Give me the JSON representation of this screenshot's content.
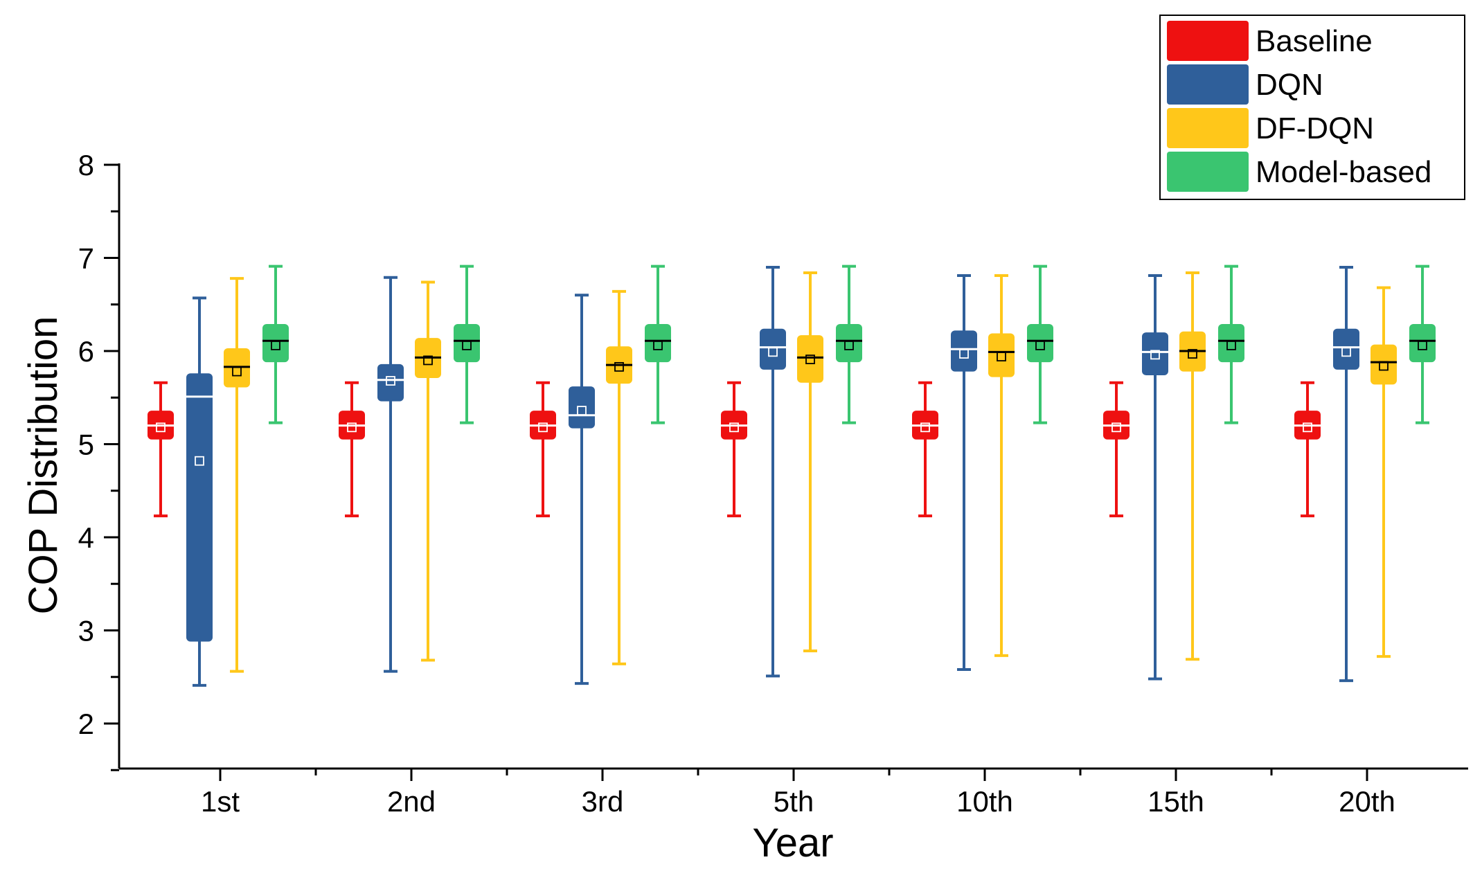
{
  "chart_data": {
    "type": "box",
    "title": "",
    "xlabel": "Year",
    "ylabel": "COP Distribution",
    "ylim": [
      1.5,
      8
    ],
    "yticks": [
      2,
      3,
      4,
      5,
      6,
      7,
      8
    ],
    "ytick_labels": [
      "2",
      "3",
      "4",
      "5",
      "6",
      "7",
      "8"
    ],
    "categories": [
      "1st",
      "2nd",
      "3rd",
      "5th",
      "10th",
      "15th",
      "20th"
    ],
    "legend_position": "top-right",
    "series": [
      {
        "name": "Baseline",
        "color": "#ee1111",
        "median_color": "#ffffff",
        "boxes": [
          {
            "min": 4.23,
            "q1": 5.05,
            "median": 5.2,
            "q3": 5.36,
            "max": 5.66,
            "mean": 5.18
          },
          {
            "min": 4.23,
            "q1": 5.05,
            "median": 5.2,
            "q3": 5.36,
            "max": 5.66,
            "mean": 5.18
          },
          {
            "min": 4.23,
            "q1": 5.05,
            "median": 5.2,
            "q3": 5.36,
            "max": 5.66,
            "mean": 5.18
          },
          {
            "min": 4.23,
            "q1": 5.05,
            "median": 5.2,
            "q3": 5.36,
            "max": 5.66,
            "mean": 5.18
          },
          {
            "min": 4.23,
            "q1": 5.05,
            "median": 5.2,
            "q3": 5.36,
            "max": 5.66,
            "mean": 5.18
          },
          {
            "min": 4.23,
            "q1": 5.05,
            "median": 5.2,
            "q3": 5.36,
            "max": 5.66,
            "mean": 5.18
          },
          {
            "min": 4.23,
            "q1": 5.05,
            "median": 5.2,
            "q3": 5.36,
            "max": 5.66,
            "mean": 5.18
          }
        ]
      },
      {
        "name": "DQN",
        "color": "#2f5f9a",
        "median_color": "#ffffff",
        "boxes": [
          {
            "min": 2.41,
            "q1": 2.88,
            "median": 5.51,
            "q3": 5.76,
            "max": 6.57,
            "mean": 4.82
          },
          {
            "min": 2.56,
            "q1": 5.46,
            "median": 5.69,
            "q3": 5.86,
            "max": 6.79,
            "mean": 5.68
          },
          {
            "min": 2.43,
            "q1": 5.17,
            "median": 5.31,
            "q3": 5.62,
            "max": 6.6,
            "mean": 5.36
          },
          {
            "min": 2.51,
            "q1": 5.8,
            "median": 6.04,
            "q3": 6.24,
            "max": 6.9,
            "mean": 5.99
          },
          {
            "min": 2.58,
            "q1": 5.78,
            "median": 6.02,
            "q3": 6.22,
            "max": 6.81,
            "mean": 5.97
          },
          {
            "min": 2.48,
            "q1": 5.74,
            "median": 5.99,
            "q3": 6.2,
            "max": 6.81,
            "mean": 5.96
          },
          {
            "min": 2.46,
            "q1": 5.8,
            "median": 6.04,
            "q3": 6.24,
            "max": 6.9,
            "mean": 5.99
          }
        ]
      },
      {
        "name": "DF-DQN",
        "color": "#ffc71a",
        "median_color": "#000000",
        "boxes": [
          {
            "min": 2.56,
            "q1": 5.61,
            "median": 5.83,
            "q3": 6.03,
            "max": 6.78,
            "mean": 5.78
          },
          {
            "min": 2.68,
            "q1": 5.71,
            "median": 5.93,
            "q3": 6.14,
            "max": 6.74,
            "mean": 5.9
          },
          {
            "min": 2.64,
            "q1": 5.65,
            "median": 5.85,
            "q3": 6.05,
            "max": 6.64,
            "mean": 5.83
          },
          {
            "min": 2.78,
            "q1": 5.66,
            "median": 5.93,
            "q3": 6.17,
            "max": 6.84,
            "mean": 5.91
          },
          {
            "min": 2.73,
            "q1": 5.72,
            "median": 5.99,
            "q3": 6.19,
            "max": 6.81,
            "mean": 5.94
          },
          {
            "min": 2.69,
            "q1": 5.78,
            "median": 6.0,
            "q3": 6.21,
            "max": 6.84,
            "mean": 5.97
          },
          {
            "min": 2.72,
            "q1": 5.64,
            "median": 5.88,
            "q3": 6.07,
            "max": 6.68,
            "mean": 5.84
          }
        ]
      },
      {
        "name": "Model-based",
        "color": "#3ac570",
        "median_color": "#000000",
        "boxes": [
          {
            "min": 5.23,
            "q1": 5.88,
            "median": 6.11,
            "q3": 6.29,
            "max": 6.91,
            "mean": 6.06
          },
          {
            "min": 5.23,
            "q1": 5.88,
            "median": 6.11,
            "q3": 6.29,
            "max": 6.91,
            "mean": 6.06
          },
          {
            "min": 5.23,
            "q1": 5.88,
            "median": 6.11,
            "q3": 6.29,
            "max": 6.91,
            "mean": 6.06
          },
          {
            "min": 5.23,
            "q1": 5.88,
            "median": 6.11,
            "q3": 6.29,
            "max": 6.91,
            "mean": 6.06
          },
          {
            "min": 5.23,
            "q1": 5.88,
            "median": 6.11,
            "q3": 6.29,
            "max": 6.91,
            "mean": 6.06
          },
          {
            "min": 5.23,
            "q1": 5.88,
            "median": 6.11,
            "q3": 6.29,
            "max": 6.91,
            "mean": 6.06
          },
          {
            "min": 5.23,
            "q1": 5.88,
            "median": 6.11,
            "q3": 6.29,
            "max": 6.91,
            "mean": 6.06
          }
        ]
      }
    ]
  }
}
